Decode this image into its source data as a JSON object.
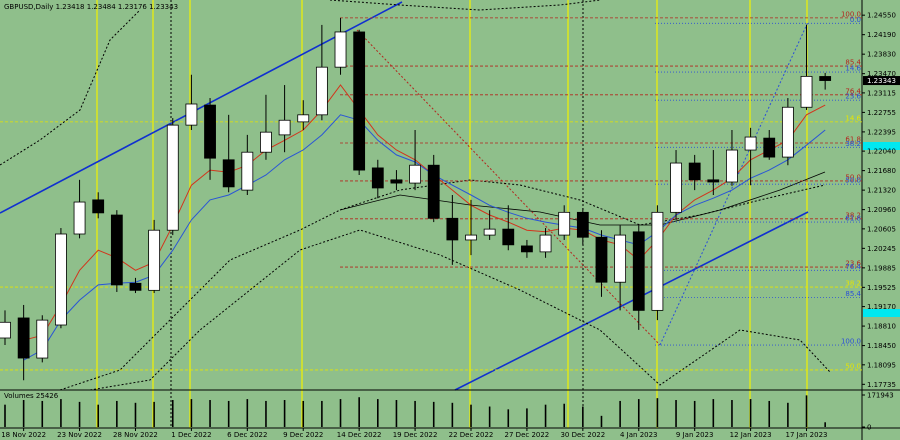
{
  "chart_data": {
    "type": "candlestick",
    "title": "GBPUSD,Daily  1.23418 1.23484 1.23176 1.23343",
    "categories": [
      null,
      "18 Nov 2022",
      null,
      null,
      "23 Nov 2022",
      null,
      null,
      "28 Nov 2022",
      null,
      null,
      "1 Dec 2022",
      null,
      null,
      "6 Dec 2022",
      null,
      null,
      "9 Dec 2022",
      null,
      null,
      "14 Dec 2022",
      null,
      null,
      "19 Dec 2022",
      null,
      null,
      "22 Dec 2022",
      null,
      null,
      "27 Dec 2022",
      null,
      null,
      "30 Dec 2022",
      null,
      null,
      "4 Jan 2023",
      null,
      null,
      "9 Jan 2023",
      null,
      null,
      "12 Jan 2023",
      null,
      null,
      "17 Jan 2023",
      null
    ],
    "open": [
      1.1859,
      1.1896,
      1.1822,
      1.1883,
      1.2051,
      1.2114,
      1.2086,
      1.196,
      1.1947,
      1.2058,
      1.2252,
      1.2289,
      1.2188,
      1.2132,
      1.2202,
      1.2234,
      1.2258,
      1.2271,
      1.2359,
      1.2424,
      1.2173,
      1.2151,
      1.2145,
      1.2178,
      1.208,
      1.204,
      1.2049,
      1.206,
      1.2029,
      1.2018,
      1.2049,
      1.2091,
      1.2045,
      1.1962,
      1.2055,
      1.191,
      1.2091,
      1.2182,
      1.2151,
      1.2147,
      1.2206,
      1.2228,
      1.2193,
      1.2285,
      1.23418
    ],
    "high": [
      1.191,
      1.192,
      1.1901,
      1.2062,
      1.2151,
      1.2128,
      1.2095,
      1.197,
      1.2077,
      1.2265,
      1.2345,
      1.2302,
      1.2271,
      1.2234,
      1.2308,
      1.2326,
      1.2298,
      1.2437,
      1.245,
      1.2428,
      1.2188,
      1.2169,
      1.2243,
      1.2197,
      1.2123,
      1.2114,
      1.2095,
      1.2104,
      1.204,
      1.2062,
      1.2104,
      1.2099,
      1.2058,
      1.2067,
      1.2067,
      1.2104,
      1.2206,
      1.2197,
      1.2206,
      1.2243,
      1.2247,
      1.2243,
      1.2302,
      1.2437,
      1.23484
    ],
    "low": [
      1.1846,
      1.1781,
      1.1814,
      1.1877,
      1.2043,
      1.208,
      1.1944,
      1.1942,
      1.1942,
      1.2049,
      1.2243,
      1.2151,
      1.2128,
      1.2123,
      1.2188,
      1.2202,
      1.2243,
      1.2261,
      1.2345,
      1.216,
      1.2117,
      1.2132,
      1.2132,
      1.2073,
      1.1994,
      1.2012,
      1.204,
      1.2021,
      1.2007,
      1.2007,
      1.204,
      1.2031,
      1.1935,
      1.191,
      1.1874,
      1.1892,
      1.2077,
      1.2132,
      1.2123,
      1.214,
      1.2141,
      1.2188,
      1.2178,
      1.228,
      1.23176
    ],
    "close": [
      1.1888,
      1.1822,
      1.1892,
      1.2051,
      1.211,
      1.209,
      1.1957,
      1.1947,
      1.2058,
      1.2252,
      1.2291,
      1.2191,
      1.2138,
      1.2202,
      1.2239,
      1.2261,
      1.2271,
      1.2359,
      1.2424,
      1.2169,
      1.2136,
      1.2145,
      1.2178,
      1.208,
      1.204,
      1.2049,
      1.206,
      1.2031,
      1.2018,
      1.2049,
      1.2091,
      1.2045,
      1.1962,
      1.2049,
      1.191,
      1.2091,
      1.2182,
      1.2151,
      1.2147,
      1.2206,
      1.223,
      1.2193,
      1.2285,
      1.2342,
      1.23343
    ],
    "up_color": "#ffffff",
    "down_color": "#000000",
    "ma_lines": [
      {
        "color": "#d2341c",
        "values": [
          null,
          1.1855,
          1.1864,
          1.192,
          1.1984,
          1.2021,
          1.2007,
          1.1984,
          1.1999,
          1.2067,
          1.2141,
          1.2169,
          1.2165,
          1.2178,
          1.2206,
          1.2224,
          1.2243,
          1.228,
          1.2326,
          1.228,
          1.2234,
          1.2206,
          1.2188,
          1.216,
          1.2132,
          1.2104,
          1.2086,
          1.2073,
          1.2058,
          1.2055,
          1.2062,
          1.2058,
          1.204,
          1.2031,
          1.2003,
          1.204,
          1.2086,
          1.2114,
          1.2132,
          1.2154,
          1.2188,
          1.2206,
          1.2224,
          1.2271,
          1.2289
        ]
      },
      {
        "color": "#2a55d6",
        "values": [
          null,
          1.1818,
          1.1837,
          1.1892,
          1.1929,
          1.1957,
          1.196,
          1.1962,
          1.1975,
          1.2021,
          1.2077,
          1.2114,
          1.2123,
          1.2141,
          1.216,
          1.2188,
          1.2206,
          1.2234,
          1.2271,
          1.2261,
          1.2224,
          1.2197,
          1.2184,
          1.216,
          1.2141,
          1.2123,
          1.2104,
          1.2091,
          1.208,
          1.2073,
          1.2067,
          1.2062,
          1.2049,
          1.204,
          1.2031,
          1.2055,
          1.2086,
          1.2104,
          1.2117,
          1.2132,
          1.2154,
          1.2169,
          1.2188,
          1.2215,
          1.2243
        ]
      }
    ],
    "last_price": 1.23343,
    "ylim": [
      1.1763,
      1.2483
    ],
    "yticks": [
      {
        "value": 1.2455,
        "label": "1.24550"
      },
      {
        "value": 1.2419,
        "label": "1.24190"
      },
      {
        "value": 1.2383,
        "label": "1.23830"
      },
      {
        "value": 1.2347,
        "label": "1.23470"
      },
      1.23115,
      1.22755,
      1.22395,
      {
        "value": 1.2204,
        "label": "1.22040"
      },
      {
        "value": 1.2168,
        "label": "1.21680"
      },
      {
        "value": 1.2132,
        "label": "1.21320"
      },
      {
        "value": 1.2096,
        "label": "1.20960"
      },
      1.20605,
      1.20245,
      1.19885,
      1.19525,
      {
        "value": 1.1917,
        "label": "1.19170"
      },
      {
        "value": 1.1881,
        "label": "1.18810"
      },
      {
        "value": 1.1845,
        "label": "1.18450"
      },
      1.18095,
      1.17735
    ],
    "fib_sets": [
      {
        "color": "#b3261e",
        "levels": [
          {
            "label": "100.0",
            "price": 1.245
          },
          {
            "label": "85.4",
            "price": 1.2361
          },
          {
            "label": "76.4",
            "price": 1.2308
          },
          {
            "label": "61.8",
            "price": 1.2219
          },
          {
            "label": "50.0",
            "price": 1.2149
          },
          {
            "label": "38.2",
            "price": 1.2079
          },
          {
            "label": "23.6",
            "price": 1.199
          }
        ]
      },
      {
        "color": "#2b4fd8",
        "levels": [
          {
            "label": "0.0",
            "price": 1.244
          },
          {
            "label": "14.6",
            "price": 1.235
          },
          {
            "label": "23.6",
            "price": 1.2298
          },
          {
            "label": "38.2",
            "price": 1.2211
          },
          {
            "label": "50.0",
            "price": 1.2143
          },
          {
            "label": "61.8",
            "price": 1.2073
          },
          {
            "label": "76.4",
            "price": 1.1984
          },
          {
            "label": "85.4",
            "price": 1.1934
          },
          {
            "label": "100.0",
            "price": 1.1846
          }
        ]
      },
      {
        "color": "#e6e600",
        "levels": [
          {
            "label": "14.6",
            "price": 1.2258
          },
          {
            "label": "38.2",
            "price": 1.1953
          },
          {
            "label": "50.0",
            "price": 1.18
          }
        ]
      }
    ],
    "volume": {
      "label": "Volumes 25426",
      "values": [
        120000,
        145000,
        140000,
        150000,
        135000,
        120000,
        140000,
        130000,
        135000,
        145000,
        150000,
        145000,
        140000,
        150000,
        140000,
        145000,
        140000,
        140000,
        150000,
        160000,
        150000,
        145000,
        140000,
        135000,
        130000,
        120000,
        110000,
        95000,
        100000,
        120000,
        125000,
        110000,
        60000,
        140000,
        150000,
        155000,
        145000,
        140000,
        150000,
        145000,
        150000,
        140000,
        130000,
        170000,
        25426
      ],
      "ylim": [
        0,
        171943
      ],
      "yticks": [
        0,
        171943
      ]
    }
  }
}
